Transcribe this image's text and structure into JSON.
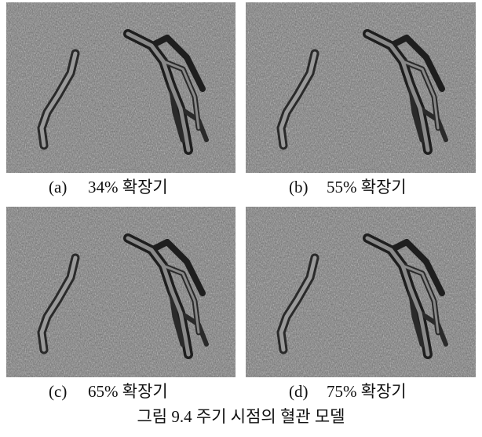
{
  "panels": [
    {
      "label": "(a)",
      "caption": "34% 확장기"
    },
    {
      "label": "(b)",
      "caption": "55% 확장기"
    },
    {
      "label": "(c)",
      "caption": "65% 확장기"
    },
    {
      "label": "(d)",
      "caption": "75% 확장기"
    }
  ],
  "figure_caption": "그림 9.4 주기 시점의 혈관 모델"
}
